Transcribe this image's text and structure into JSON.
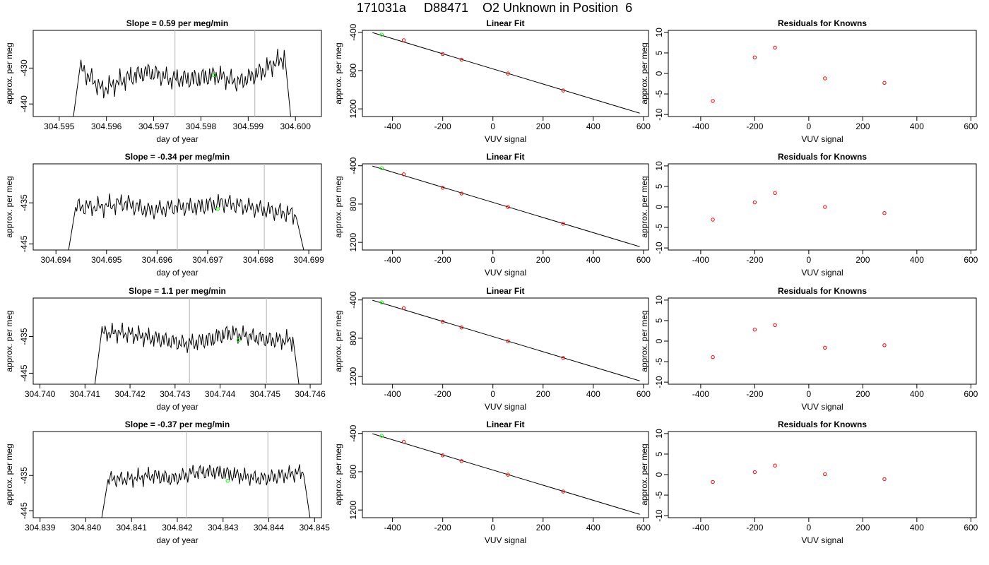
{
  "header": {
    "title": "171031a     D88471    O2 Unknown in Position  6"
  },
  "colors": {
    "line": "#000000",
    "vline": "#bebebe",
    "green": "#00ff00",
    "red": "#ff0000"
  },
  "chart_data": [
    {
      "type": "line",
      "row": 0,
      "col": 0,
      "title": "Slope =  0.59  per meg/min",
      "xlabel": "day of year",
      "ylabel": "approx. per meg",
      "xlim": [
        304.59445,
        304.60055
      ],
      "ylim": [
        -443.5,
        -419.5
      ],
      "xticks": [
        304.595,
        304.596,
        304.597,
        304.598,
        304.599,
        304.6
      ],
      "xtick_labels": [
        "304.595",
        "304.596",
        "304.597",
        "304.598",
        "304.599",
        "304.600"
      ],
      "yticks": [
        -430,
        -440
      ],
      "ytick_labels": [
        "-430",
        "-440"
      ],
      "vlines": [
        304.59745,
        304.59914
      ],
      "series": [
        {
          "x_start": 304.5953,
          "x_end": 304.5999,
          "amp": 1.9,
          "levels": [
            -430,
            -436,
            -433,
            -431,
            -433,
            -433,
            -432,
            -434,
            -431,
            -427
          ]
        }
      ],
      "highlight_points": [
        {
          "x": 304.59827,
          "y": -432.0
        }
      ]
    },
    {
      "type": "scatter",
      "row": 0,
      "col": 1,
      "title": "Linear Fit",
      "xlabel": "VUV signal",
      "ylabel": "approx. per meg",
      "xlim": [
        -520,
        620
      ],
      "ylim": [
        -1280,
        -380
      ],
      "xticks": [
        -400,
        -200,
        0,
        200,
        400,
        600
      ],
      "xtick_labels": [
        "-400",
        "-200",
        "0",
        "200",
        "400",
        "600"
      ],
      "yticks": [
        -400,
        -800,
        -1200
      ],
      "ytick_labels": [
        "-400",
        "800",
        "1200"
      ],
      "fit_line": {
        "x": [
          -480,
          585
        ],
        "y": [
          -403,
          -1245
        ]
      },
      "knowns": {
        "x": [
          -355,
          -200,
          -125,
          60,
          280
        ],
        "y": [
          -483,
          -627,
          -686,
          -831,
          -1008
        ]
      },
      "unknown": {
        "x": [
          -443
        ],
        "y": [
          -425
        ]
      }
    },
    {
      "type": "scatter",
      "row": 0,
      "col": 2,
      "title": "Residuals for Knowns",
      "xlabel": "VUV signal",
      "ylabel": "approx. per meg",
      "xlim": [
        -520,
        620
      ],
      "ylim": [
        -10.5,
        10.5
      ],
      "xticks": [
        -400,
        -200,
        0,
        200,
        400,
        600
      ],
      "xtick_labels": [
        "-400",
        "-200",
        "0",
        "200",
        "400",
        "600"
      ],
      "yticks": [
        10,
        5,
        0,
        -5,
        -10
      ],
      "ytick_labels": [
        "10",
        "5",
        "0",
        "-5",
        "-10"
      ],
      "points": {
        "x": [
          -355,
          -200,
          -125,
          60,
          280
        ],
        "y": [
          -6.7,
          3.9,
          6.3,
          -1.2,
          -2.3
        ]
      }
    },
    {
      "type": "line",
      "row": 1,
      "col": 0,
      "title": "Slope =  -0.34  per meg/min",
      "xlabel": "day of year",
      "ylabel": "approx. per meg",
      "xlim": [
        304.69355,
        304.69925
      ],
      "ylim": [
        -446.5,
        -425.5
      ],
      "xticks": [
        304.694,
        304.695,
        304.696,
        304.697,
        304.698,
        304.699
      ],
      "xtick_labels": [
        "304.694",
        "304.695",
        "304.696",
        "304.697",
        "304.698",
        "304.699"
      ],
      "yticks": [
        -435,
        -445
      ],
      "ytick_labels": [
        "-435",
        "-445"
      ],
      "vlines": [
        304.6964,
        304.69812
      ],
      "series": [
        {
          "x_start": 304.69425,
          "x_end": 304.6989,
          "amp": 1.5,
          "levels": [
            -436,
            -436,
            -435,
            -437,
            -436,
            -436,
            -435,
            -436,
            -437,
            -438
          ]
        }
      ],
      "highlight_points": [
        {
          "x": 304.6972,
          "y": -436.5
        }
      ]
    },
    {
      "type": "scatter",
      "row": 1,
      "col": 1,
      "title": "Linear Fit",
      "xlabel": "VUV signal",
      "ylabel": "approx. per meg",
      "xlim": [
        -520,
        620
      ],
      "ylim": [
        -1280,
        -380
      ],
      "xticks": [
        -400,
        -200,
        0,
        200,
        400,
        600
      ],
      "xtick_labels": [
        "-400",
        "-200",
        "0",
        "200",
        "400",
        "600"
      ],
      "yticks": [
        -400,
        -800,
        -1200
      ],
      "ytick_labels": [
        "-400",
        "800",
        "1200"
      ],
      "fit_line": {
        "x": [
          -480,
          585
        ],
        "y": [
          -403,
          -1245
        ]
      },
      "knowns": {
        "x": [
          -355,
          -200,
          -125,
          60,
          280
        ],
        "y": [
          -489,
          -630,
          -690,
          -830,
          -1006
        ]
      },
      "unknown": {
        "x": [
          -443
        ],
        "y": [
          -425
        ]
      }
    },
    {
      "type": "scatter",
      "row": 1,
      "col": 2,
      "title": "Residuals for Knowns",
      "xlabel": "VUV signal",
      "ylabel": "approx. per meg",
      "xlim": [
        -520,
        620
      ],
      "ylim": [
        -10.5,
        10.5
      ],
      "xticks": [
        -400,
        -200,
        0,
        200,
        400,
        600
      ],
      "xtick_labels": [
        "-400",
        "-200",
        "0",
        "200",
        "400",
        "600"
      ],
      "yticks": [
        10,
        5,
        0,
        -5,
        -10
      ],
      "ytick_labels": [
        "10",
        "5",
        "0",
        "-5",
        "-10"
      ],
      "points": {
        "x": [
          -355,
          -200,
          -125,
          60,
          280
        ],
        "y": [
          -3.1,
          1.1,
          3.4,
          0.0,
          -1.5
        ]
      }
    },
    {
      "type": "line",
      "row": 2,
      "col": 0,
      "title": "Slope =  1.1  per meg/min",
      "xlabel": "day of year",
      "ylabel": "approx. per meg",
      "xlim": [
        304.73985,
        304.74625
      ],
      "ylim": [
        -448,
        -424.5
      ],
      "xticks": [
        304.74,
        304.741,
        304.742,
        304.743,
        304.744,
        304.745,
        304.746
      ],
      "xtick_labels": [
        "304.740",
        "304.741",
        "304.742",
        "304.743",
        "304.744",
        "304.745",
        "304.746"
      ],
      "yticks": [
        -435,
        -445
      ],
      "ytick_labels": [
        "-435",
        "-445"
      ],
      "vlines": [
        304.74332,
        304.74503
      ],
      "series": [
        {
          "x_start": 304.74122,
          "x_end": 304.74575,
          "amp": 1.6,
          "levels": [
            -434,
            -434,
            -435,
            -436,
            -437,
            -436,
            -434,
            -435,
            -436,
            -436
          ]
        }
      ],
      "highlight_points": [
        {
          "x": 304.74441,
          "y": -436.0
        }
      ]
    },
    {
      "type": "scatter",
      "row": 2,
      "col": 1,
      "title": "Linear Fit",
      "xlabel": "VUV signal",
      "ylabel": "approx. per meg",
      "xlim": [
        -520,
        620
      ],
      "ylim": [
        -1280,
        -380
      ],
      "xticks": [
        -400,
        -200,
        0,
        200,
        400,
        600
      ],
      "xtick_labels": [
        "-400",
        "-200",
        "0",
        "200",
        "400",
        "600"
      ],
      "yticks": [
        -400,
        -800,
        -1200
      ],
      "ytick_labels": [
        "-400",
        "800",
        "1200"
      ],
      "fit_line": {
        "x": [
          -480,
          585
        ],
        "y": [
          -403,
          -1245
        ]
      },
      "knowns": {
        "x": [
          -355,
          -200,
          -125,
          60,
          280
        ],
        "y": [
          -485,
          -628,
          -688,
          -832,
          -1006
        ]
      },
      "unknown": {
        "x": [
          -443
        ],
        "y": [
          -425
        ]
      }
    },
    {
      "type": "scatter",
      "row": 2,
      "col": 2,
      "title": "Residuals for Knowns",
      "xlabel": "VUV signal",
      "ylabel": "approx. per meg",
      "xlim": [
        -520,
        620
      ],
      "ylim": [
        -10.5,
        10.5
      ],
      "xticks": [
        -400,
        -200,
        0,
        200,
        400,
        600
      ],
      "xtick_labels": [
        "-400",
        "-200",
        "0",
        "200",
        "400",
        "600"
      ],
      "yticks": [
        10,
        5,
        0,
        -5,
        -10
      ],
      "ytick_labels": [
        "10",
        "5",
        "0",
        "-5",
        "-10"
      ],
      "points": {
        "x": [
          -355,
          -200,
          -125,
          60,
          280
        ],
        "y": [
          -3.9,
          2.8,
          3.9,
          -1.6,
          -1.0
        ]
      }
    },
    {
      "type": "line",
      "row": 3,
      "col": 0,
      "title": "Slope =  -0.37  per meg/min",
      "xlabel": "day of year",
      "ylabel": "approx. per meg",
      "xlim": [
        304.83885,
        304.84515
      ],
      "ylim": [
        -447,
        -422.5
      ],
      "xticks": [
        304.839,
        304.84,
        304.841,
        304.842,
        304.843,
        304.844,
        304.845
      ],
      "xtick_labels": [
        "304.839",
        "304.840",
        "304.841",
        "304.842",
        "304.843",
        "304.844",
        "304.845"
      ],
      "yticks": [
        -435,
        -445
      ],
      "ytick_labels": [
        "-435",
        "-445"
      ],
      "vlines": [
        304.8422,
        304.84398
      ],
      "series": [
        {
          "x_start": 304.84035,
          "x_end": 304.8449,
          "amp": 1.5,
          "levels": [
            -436,
            -436,
            -435,
            -436,
            -434,
            -434,
            -435,
            -436,
            -435,
            -434
          ]
        }
      ],
      "highlight_points": [
        {
          "x": 304.8431,
          "y": -436.5
        }
      ]
    },
    {
      "type": "scatter",
      "row": 3,
      "col": 1,
      "title": "Linear Fit",
      "xlabel": "VUV signal",
      "ylabel": "approx. per meg",
      "xlim": [
        -520,
        620
      ],
      "ylim": [
        -1280,
        -380
      ],
      "xticks": [
        -400,
        -200,
        0,
        200,
        400,
        600
      ],
      "xtick_labels": [
        "-400",
        "-200",
        "0",
        "200",
        "400",
        "600"
      ],
      "yticks": [
        -400,
        -800,
        -1200
      ],
      "ytick_labels": [
        "-400",
        "800",
        "1200"
      ],
      "fit_line": {
        "x": [
          -480,
          585
        ],
        "y": [
          -403,
          -1245
        ]
      },
      "knowns": {
        "x": [
          -355,
          -200,
          -125,
          60,
          280
        ],
        "y": [
          -487,
          -629,
          -689,
          -831,
          -1007
        ]
      },
      "unknown": {
        "x": [
          -443
        ],
        "y": [
          -425
        ]
      }
    },
    {
      "type": "scatter",
      "row": 3,
      "col": 2,
      "title": "Residuals for Knowns",
      "xlabel": "VUV signal",
      "ylabel": "approx. per meg",
      "xlim": [
        -520,
        620
      ],
      "ylim": [
        -10.5,
        10.5
      ],
      "xticks": [
        -400,
        -200,
        0,
        200,
        400,
        600
      ],
      "xtick_labels": [
        "-400",
        "-200",
        "0",
        "200",
        "400",
        "600"
      ],
      "yticks": [
        10,
        5,
        0,
        -5,
        -10
      ],
      "ytick_labels": [
        "10",
        "5",
        "0",
        "-5",
        "-10"
      ],
      "points": {
        "x": [
          -355,
          -200,
          -125,
          60,
          280
        ],
        "y": [
          -1.8,
          0.6,
          2.2,
          0.1,
          -1.1
        ]
      }
    }
  ]
}
